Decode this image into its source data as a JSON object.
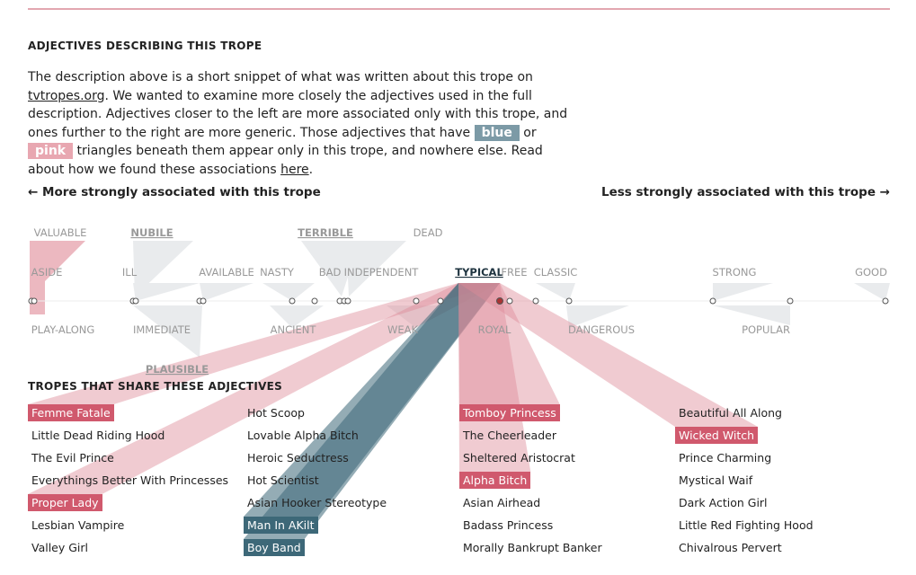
{
  "section_title": "ADJECTIVES DESCRIBING THIS TROPE",
  "description": {
    "text1": "The description above is a short snippet of what was written about this trope on ",
    "link1": "tvtropes.org",
    "text2": ". We wanted to examine more closely the adjectives used in the full description. Adjectives closer to the left are more associated only with this trope, and ones further to the right are more generic. Those adjectives that have ",
    "blue": "blue",
    "or": " or ",
    "pink": "pink",
    "text3": " triangles beneath them appear only in this trope, and nowhere else. Read about how we found these associations ",
    "link2": "here",
    "end": "."
  },
  "left_label": "← More strongly associated with this trope",
  "right_label": "Less strongly associated with this trope →",
  "adjectives": [
    {
      "label": "VALUABLE"
    },
    {
      "label": "NUBILE",
      "underlined": true
    },
    {
      "label": "TERRIBLE",
      "underlined": true
    },
    {
      "label": "DEAD"
    },
    {
      "label": "ASIDE"
    },
    {
      "label": "ILL"
    },
    {
      "label": "AVAILABLE"
    },
    {
      "label": "NASTY"
    },
    {
      "label": "BAD"
    },
    {
      "label": "INDEPENDENT"
    },
    {
      "label": "TYPICAL",
      "underlined": true,
      "selected": true
    },
    {
      "label": "FREE"
    },
    {
      "label": "CLASSIC"
    },
    {
      "label": "STRONG"
    },
    {
      "label": "GOOD"
    },
    {
      "label": "PLAY-ALONG"
    },
    {
      "label": "IMMEDIATE"
    },
    {
      "label": "ANCIENT"
    },
    {
      "label": "WEAK"
    },
    {
      "label": "ROYAL"
    },
    {
      "label": "DANGEROUS"
    },
    {
      "label": "POPULAR"
    },
    {
      "label": "PLAUSIBLE",
      "underlined": true
    }
  ],
  "tropes_title": "TROPES THAT SHARE THESE ADJECTIVES",
  "tropes": [
    [
      {
        "name": "Femme Fatale",
        "highlight": "pink"
      },
      {
        "name": "Little Dead Riding Hood"
      },
      {
        "name": "The Evil Prince"
      },
      {
        "name": "Everythings Better With Princesses"
      },
      {
        "name": "Proper Lady",
        "highlight": "pink"
      },
      {
        "name": "Lesbian Vampire"
      },
      {
        "name": "Valley Girl"
      }
    ],
    [
      {
        "name": "Hot Scoop"
      },
      {
        "name": "Lovable Alpha Bitch"
      },
      {
        "name": "Heroic Seductress"
      },
      {
        "name": "Hot Scientist"
      },
      {
        "name": "Asian Hooker Stereotype"
      },
      {
        "name": "Man In AKilt",
        "highlight": "blue"
      },
      {
        "name": "Boy Band",
        "highlight": "blue"
      }
    ],
    [
      {
        "name": "Tomboy Princess",
        "highlight": "pink"
      },
      {
        "name": "The Cheerleader"
      },
      {
        "name": "Sheltered Aristocrat"
      },
      {
        "name": "Alpha Bitch",
        "highlight": "pink"
      },
      {
        "name": "Asian Airhead"
      },
      {
        "name": "Badass Princess"
      },
      {
        "name": "Morally Bankrupt Banker"
      }
    ],
    [
      {
        "name": "Beautiful All Along"
      },
      {
        "name": "Wicked Witch",
        "highlight": "pink"
      },
      {
        "name": "Prince Charming"
      },
      {
        "name": "Mystical Waif"
      },
      {
        "name": "Dark Action Girl"
      },
      {
        "name": "Little Red Fighting Hood"
      },
      {
        "name": "Chivalrous Pervert"
      }
    ]
  ]
}
